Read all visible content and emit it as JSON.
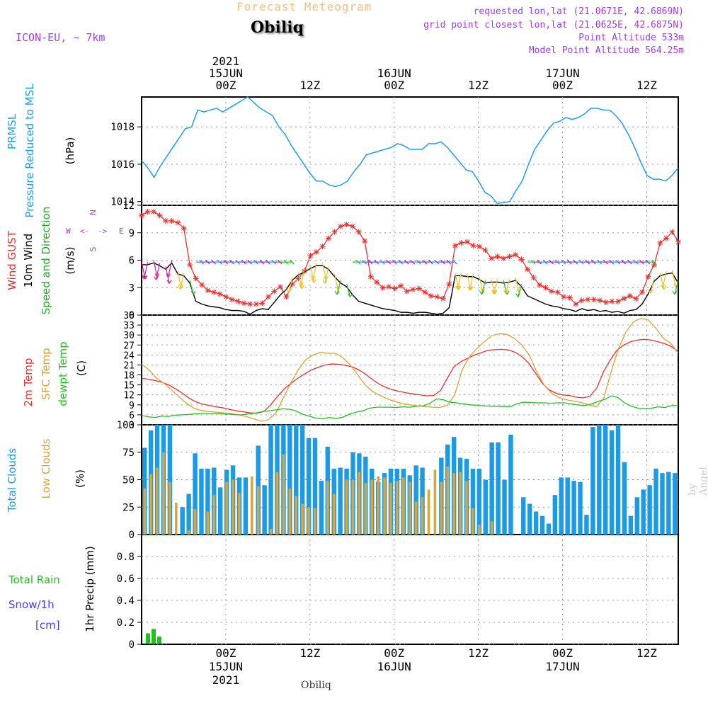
{
  "header": {
    "title": "Forecast Meteogram",
    "station": "Obiliq",
    "model": "ICON-EU, ~ 7km",
    "requested": "requested lon,lat (21.0671E, 42.6869N)",
    "grid_point": "grid point closest lon,lat (21.0625E, 42.6875N)",
    "point_altitude": "Point Altitude 533m",
    "model_altitude": "Model Point Altitude 564.25m"
  },
  "footer": {
    "station": "Obiliq",
    "credit": "by Angel"
  },
  "colors": {
    "pressure": "#1aa0e8",
    "gust": "#e83030",
    "wind": "#000000",
    "wind_label_green": "#20b020",
    "t2m": "#e83030",
    "tsfc": "#e0a030",
    "dewpt": "#20c020",
    "total_clouds": "#1b9be6",
    "low_clouds": "#d8a640",
    "rain": "#20c020",
    "snow": "#4040ff",
    "header_purple": "#a040e0"
  },
  "chart_data": [
    {
      "id": "pressure",
      "type": "line",
      "ylabel": "(hPa)",
      "side_labels": [
        "PRMSL",
        "Pressure Reduced to MSL"
      ],
      "ylim": [
        1013.8,
        1019.6
      ],
      "yticks": [
        1014,
        1016,
        1018
      ],
      "series": [
        {
          "name": "PRMSL",
          "values": [
            1016.2,
            1015.8,
            1015.3,
            1015.9,
            1016.4,
            1016.9,
            1017.4,
            1017.9,
            1018.0,
            1018.9,
            1018.8,
            1018.9,
            1019.0,
            1018.8,
            1019.0,
            1019.2,
            1019.4,
            1019.6,
            1019.3,
            1019.0,
            1018.8,
            1018.6,
            1018.0,
            1017.6,
            1017.0,
            1016.5,
            1016.0,
            1015.5,
            1015.1,
            1015.1,
            1014.9,
            1014.8,
            1014.9,
            1015.1,
            1015.6,
            1016.0,
            1016.5,
            1016.6,
            1016.7,
            1016.8,
            1016.9,
            1017.1,
            1017.0,
            1016.8,
            1016.8,
            1016.8,
            1017.1,
            1017.1,
            1017.2,
            1016.9,
            1016.5,
            1016.1,
            1015.7,
            1015.6,
            1015.1,
            1014.5,
            1014.3,
            1013.9,
            1013.95,
            1014.0,
            1014.6,
            1015.1,
            1016.0,
            1016.8,
            1017.3,
            1017.8,
            1018.2,
            1018.3,
            1018.5,
            1018.4,
            1018.5,
            1018.7,
            1019.0,
            1019.0,
            1018.9,
            1018.9,
            1018.6,
            1018.2,
            1017.6,
            1016.9,
            1016.1,
            1015.4,
            1015.2,
            1015.2,
            1015.1,
            1015.4,
            1015.8
          ]
        }
      ]
    },
    {
      "id": "wind",
      "type": "line",
      "ylabel": "(m/s)",
      "side_labels": [
        "Wind GUST",
        "10m Wind",
        "Speed and Direction"
      ],
      "compass": {
        "n": "N",
        "s": "S",
        "e": "E",
        "w": "W"
      },
      "ylim": [
        0,
        12
      ],
      "yticks": [
        0,
        3,
        6,
        9,
        12
      ],
      "series": [
        {
          "name": "Wind GUST",
          "values": [
            10.9,
            11.3,
            11.3,
            10.9,
            10.3,
            10.3,
            10.1,
            9.5,
            5.5,
            4.0,
            3.3,
            2.7,
            2.5,
            2.3,
            2.0,
            1.7,
            1.5,
            1.3,
            1.2,
            1.2,
            1.3,
            2.0,
            2.6,
            3.1,
            2.0,
            3.4,
            4.0,
            4.8,
            6.5,
            6.9,
            7.5,
            8.4,
            9.1,
            9.7,
            9.9,
            9.7,
            9.1,
            8.1,
            4.2,
            3.6,
            3.0,
            3.1,
            2.9,
            3.2,
            2.6,
            2.8,
            2.9,
            2.5,
            2.1,
            2.0,
            1.8,
            3.4,
            7.6,
            7.9,
            8.0,
            7.6,
            7.5,
            7.1,
            6.2,
            6.4,
            6.2,
            6.4,
            6.6,
            6.1,
            5.0,
            4.1,
            3.3,
            3.0,
            2.6,
            2.5,
            2.0,
            1.9,
            1.2,
            1.6,
            1.7,
            1.7,
            1.6,
            1.4,
            1.5,
            1.5,
            1.8,
            2.1,
            1.8,
            2.5,
            4.2,
            5.5,
            7.9,
            8.4,
            9.1,
            8.0
          ]
        },
        {
          "name": "10m Wind",
          "values": [
            5.5,
            5.5,
            5.7,
            5.4,
            5.0,
            5.7,
            4.5,
            4.3,
            3.5,
            1.5,
            1.2,
            1.0,
            0.9,
            0.8,
            0.6,
            0.5,
            0.5,
            0.4,
            0.1,
            0.5,
            0.7,
            0.6,
            1.4,
            2.2,
            2.8,
            3.8,
            4.4,
            4.7,
            5.1,
            5.4,
            5.4,
            5.0,
            4.2,
            3.5,
            3.1,
            2.2,
            1.5,
            1.3,
            1.1,
            0.9,
            0.7,
            0.6,
            0.5,
            0.3,
            0.3,
            0.2,
            0.3,
            0.3,
            0.2,
            0.1,
            0.2,
            0.8,
            4.3,
            4.3,
            4.2,
            4.2,
            3.9,
            3.5,
            3.6,
            3.6,
            3.5,
            3.6,
            3.8,
            3.1,
            2.1,
            1.8,
            1.5,
            1.2,
            1.0,
            0.9,
            0.7,
            0.6,
            0.4,
            0.7,
            0.5,
            0.6,
            0.4,
            0.5,
            0.3,
            0.4,
            0.2,
            0.5,
            0.6,
            1.2,
            2.3,
            3.7,
            4.3,
            4.5,
            4.6,
            3.5
          ]
        }
      ],
      "note": "direction arrows drawn along 10m wind line"
    },
    {
      "id": "temperature",
      "type": "line",
      "ylabel": "(C)",
      "side_labels": [
        "2m Temp",
        "SFC Temp",
        "dewpt Temp"
      ],
      "ylim": [
        3,
        36
      ],
      "yticks": [
        3,
        6,
        9,
        12,
        15,
        18,
        21,
        24,
        27,
        30,
        33,
        36
      ],
      "series": [
        {
          "name": "2m Temp",
          "values": [
            17.0,
            16.7,
            16.3,
            15.8,
            15.0,
            13.8,
            12.5,
            11.0,
            9.9,
            9.2,
            8.8,
            8.4,
            8.1,
            7.6,
            7.2,
            6.9,
            6.6,
            6.5,
            7.0,
            9.0,
            11.5,
            13.8,
            15.5,
            17.0,
            18.3,
            19.5,
            20.3,
            21.0,
            21.3,
            21.2,
            20.9,
            20.4,
            19.5,
            18.2,
            16.6,
            15.2,
            14.2,
            13.5,
            13.0,
            12.6,
            12.3,
            12.0,
            11.7,
            11.8,
            13.3,
            17.0,
            20.5,
            22.0,
            23.0,
            24.0,
            24.7,
            25.4,
            25.6,
            25.7,
            25.5,
            24.8,
            23.5,
            21.5,
            18.5,
            15.5,
            13.5,
            12.5,
            12.0,
            11.8,
            11.3,
            11.1,
            11.6,
            14.0,
            19.0,
            22.5,
            25.5,
            27.0,
            28.0,
            28.5,
            28.7,
            28.5,
            28.0,
            27.4,
            26.5,
            25.0
          ]
        },
        {
          "name": "SFC Temp",
          "values": [
            21.3,
            19.5,
            17.0,
            15.5,
            13.5,
            11.5,
            9.5,
            8.0,
            7.3,
            7.0,
            6.8,
            6.6,
            6.4,
            6.0,
            5.5,
            4.8,
            4.1,
            4.5,
            6.5,
            11.0,
            15.5,
            19.5,
            22.5,
            24.0,
            24.8,
            24.5,
            24.5,
            23.2,
            21.0,
            18.0,
            15.0,
            13.0,
            11.8,
            10.8,
            10.0,
            9.4,
            9.0,
            8.7,
            8.5,
            8.3,
            8.2,
            8.8,
            12.0,
            19.5,
            23.5,
            26.0,
            28.0,
            29.8,
            30.4,
            30.2,
            29.0,
            27.0,
            24.0,
            19.0,
            15.0,
            12.5,
            11.2,
            10.5,
            10.1,
            9.7,
            9.0,
            8.4,
            11.0,
            19.0,
            26.0,
            31.0,
            34.0,
            35.0,
            34.5,
            32.0,
            29.0,
            27.5,
            24.5
          ]
        },
        {
          "name": "dewpt Temp",
          "values": [
            5.8,
            5.4,
            5.2,
            5.6,
            5.5,
            5.9,
            6.0,
            6.1,
            6.3,
            6.4,
            6.4,
            6.4,
            6.3,
            6.2,
            6.0,
            6.0,
            6.3,
            6.5,
            7.0,
            7.2,
            7.5,
            7.8,
            7.7,
            7.2,
            6.2,
            5.6,
            5.0,
            4.8,
            5.2,
            4.9,
            5.3,
            6.2,
            6.8,
            7.2,
            8.0,
            8.3,
            8.3,
            8.3,
            8.2,
            8.4,
            8.3,
            8.6,
            8.7,
            9.5,
            10.8,
            10.5,
            9.8,
            9.6,
            9.3,
            9.0,
            8.9,
            8.7,
            8.6,
            8.6,
            8.5,
            8.5,
            9.4,
            9.8,
            9.7,
            9.6,
            9.6,
            9.5,
            9.6,
            9.6,
            9.3,
            9.0,
            8.8,
            9.2,
            10.0,
            10.6,
            11.7,
            11.2,
            9.6,
            8.6,
            8.0,
            7.8,
            8.0,
            8.4,
            8.2,
            8.8,
            8.8
          ]
        }
      ]
    },
    {
      "id": "clouds",
      "type": "bar",
      "ylabel": "(%)",
      "side_labels": [
        "Total Clouds",
        "Low Clouds"
      ],
      "ylim": [
        0,
        100
      ],
      "yticks": [
        0,
        25,
        50,
        75,
        100
      ],
      "series": [
        {
          "name": "Total Clouds",
          "values": [
            79,
            95,
            100,
            100,
            100,
            0,
            25,
            37,
            74,
            60,
            60,
            61,
            43,
            59,
            63,
            52,
            52,
            0,
            81,
            45,
            100,
            100,
            100,
            100,
            100,
            100,
            88,
            88,
            49,
            80,
            60,
            61,
            60,
            75,
            74,
            71,
            60,
            48,
            56,
            60,
            60,
            60,
            54,
            63,
            61,
            0,
            0,
            70,
            82,
            89,
            70,
            69,
            60,
            60,
            50,
            84,
            84,
            50,
            91,
            0,
            34,
            28,
            21,
            17,
            10,
            36,
            52,
            52,
            49,
            48,
            18,
            98,
            100,
            100,
            95,
            100,
            66,
            17,
            34,
            41,
            45,
            60,
            56,
            57,
            56
          ]
        },
        {
          "name": "Low Clouds",
          "values": [
            42,
            55,
            61,
            75,
            48,
            29,
            0,
            4,
            23,
            0,
            21,
            36,
            0,
            48,
            50,
            38,
            0,
            53,
            44,
            0,
            5,
            57,
            73,
            42,
            35,
            28,
            25,
            24,
            0,
            49,
            37,
            0,
            50,
            50,
            57,
            47,
            50,
            53,
            52,
            47,
            49,
            52,
            48,
            30,
            34,
            41,
            59,
            48,
            62,
            56,
            57,
            49,
            24,
            9,
            0,
            12,
            0,
            0,
            0,
            0,
            0,
            0,
            0,
            0,
            0,
            0,
            0,
            0,
            0,
            0,
            0,
            0,
            0,
            0,
            0,
            0,
            0,
            0,
            0,
            0,
            0,
            0,
            0,
            0,
            0
          ]
        }
      ]
    },
    {
      "id": "precip",
      "type": "bar",
      "ylabel": "1hr Precip (mm)",
      "side_labels": [
        "Total  Rain",
        "Snow/1h",
        "[cm]"
      ],
      "ylim": [
        0,
        1
      ],
      "yticks": [
        0,
        0.2,
        0.4,
        0.6,
        0.8
      ],
      "series": [
        {
          "name": "Total Rain",
          "values": [
            0.1,
            0.14,
            0.07
          ]
        }
      ]
    }
  ],
  "time_axis": {
    "top_labels": [
      {
        "hour": 12,
        "line1": "2021",
        "line2": "15JUN",
        "line3": "00Z"
      },
      {
        "hour": 24,
        "line3": "12Z"
      },
      {
        "hour": 36,
        "line1": "",
        "line2": "16JUN",
        "line3": "00Z"
      },
      {
        "hour": 48,
        "line3": "12Z"
      },
      {
        "hour": 60,
        "line1": "",
        "line2": "17JUN",
        "line3": "00Z"
      },
      {
        "hour": 72,
        "line3": "12Z"
      }
    ],
    "bottom_labels": [
      {
        "hour": 12,
        "line1": "00Z",
        "line2": "15JUN",
        "line3": "2021"
      },
      {
        "hour": 24,
        "line1": "12Z"
      },
      {
        "hour": 36,
        "line1": "00Z",
        "line2": "16JUN"
      },
      {
        "hour": 48,
        "line1": "12Z"
      },
      {
        "hour": 60,
        "line1": "00Z",
        "line2": "17JUN"
      },
      {
        "hour": 72,
        "line1": "12Z"
      }
    ],
    "hours": 76.5
  }
}
